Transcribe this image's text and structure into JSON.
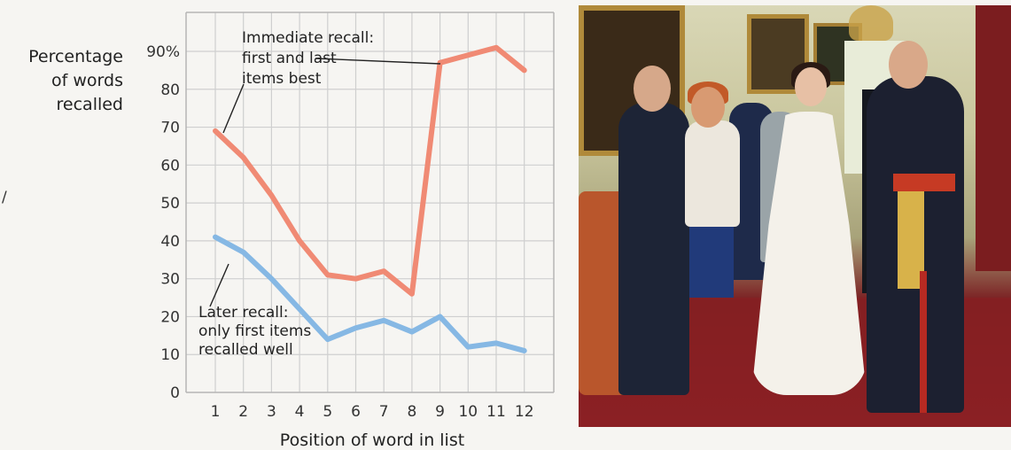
{
  "chart_data": {
    "type": "line",
    "title": "",
    "xlabel": "Position of word in list",
    "ylabel_lines": [
      "Percentage",
      "of words",
      "recalled"
    ],
    "x": [
      1,
      2,
      3,
      4,
      5,
      6,
      7,
      8,
      9,
      10,
      11,
      12
    ],
    "x_tick_labels": [
      "1",
      "2",
      "3",
      "4",
      "5",
      "6",
      "7",
      "8",
      "9",
      "10",
      "11",
      "12"
    ],
    "y_ticks": [
      0,
      10,
      20,
      30,
      40,
      50,
      60,
      70,
      80,
      90
    ],
    "y_tick_labels": [
      "0",
      "10",
      "20",
      "30",
      "40",
      "50",
      "60",
      "70",
      "80",
      "90%"
    ],
    "ylim": [
      0,
      93
    ],
    "xlim": [
      0.5,
      12.7
    ],
    "grid": true,
    "series": [
      {
        "key": "immediate",
        "values": [
          69,
          62,
          52,
          40,
          31,
          30,
          32,
          26,
          87,
          89,
          91,
          85
        ],
        "color": "#f08a74"
      },
      {
        "key": "later",
        "values": [
          41,
          37,
          30,
          22,
          14,
          17,
          19,
          16,
          20,
          12,
          13,
          11
        ],
        "color": "#86b8e4"
      }
    ],
    "annotations": [
      {
        "key": "immediate",
        "lines": [
          "Immediate recall:",
          "first and last",
          "items best"
        ]
      },
      {
        "key": "later",
        "lines": [
          "Later recall:",
          "only first items",
          "recalled well"
        ]
      }
    ]
  },
  "side_mark": "/",
  "photo": {
    "description_name": "receiving-line-photo"
  }
}
